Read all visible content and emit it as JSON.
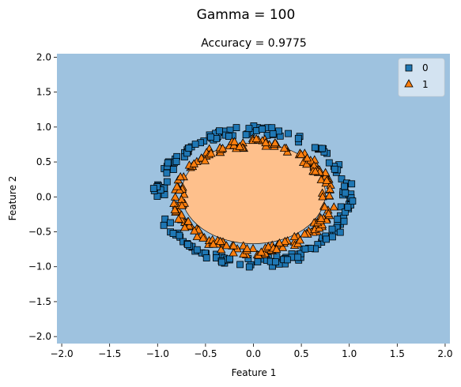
{
  "figure": {
    "suptitle": "Gamma = 100"
  },
  "chart_data": {
    "type": "scatter",
    "plot_kind": "decision-region",
    "title": "Accuracy = 0.9775",
    "xlabel": "Feature 1",
    "ylabel": "Feature 2",
    "xlim": [
      -2.05,
      2.05
    ],
    "ylim": [
      -2.1,
      2.05
    ],
    "xticks": [
      -2.0,
      -1.5,
      -1.0,
      -0.5,
      0.0,
      0.5,
      1.0,
      1.5,
      2.0
    ],
    "xtick_labels": [
      "−2.0",
      "−1.5",
      "−1.0",
      "−0.5",
      "0.0",
      "0.5",
      "1.0",
      "1.5",
      "2.0"
    ],
    "yticks": [
      -2.0,
      -1.5,
      -1.0,
      -0.5,
      0.0,
      0.5,
      1.0,
      1.5,
      2.0
    ],
    "ytick_labels": [
      "−2.0",
      "−1.5",
      "−1.0",
      "−0.5",
      "0.0",
      "0.5",
      "1.0",
      "1.5",
      "2.0"
    ],
    "grid": false,
    "legend_position": "top-right",
    "regions": [
      {
        "class": "0",
        "color": "#9ec2df",
        "description": "background"
      },
      {
        "class": "1",
        "color": "#fec08c",
        "shape": "ellipse",
        "center": [
          0.0,
          0.05
        ],
        "rx": 0.75,
        "ry": 0.72
      }
    ],
    "series": [
      {
        "name": "0",
        "marker": "square",
        "color": "#1f77b4",
        "pattern": "ring",
        "center": [
          0.0,
          0.0
        ],
        "rx_range": [
          0.92,
          1.05
        ],
        "ry_range": [
          0.88,
          1.02
        ],
        "count": 200
      },
      {
        "name": "1",
        "marker": "triangle",
        "color": "#ff7f0e",
        "pattern": "ring",
        "center": [
          0.0,
          0.0
        ],
        "rx_range": [
          0.72,
          0.86
        ],
        "ry_range": [
          0.7,
          0.84
        ],
        "count": 200
      }
    ]
  }
}
